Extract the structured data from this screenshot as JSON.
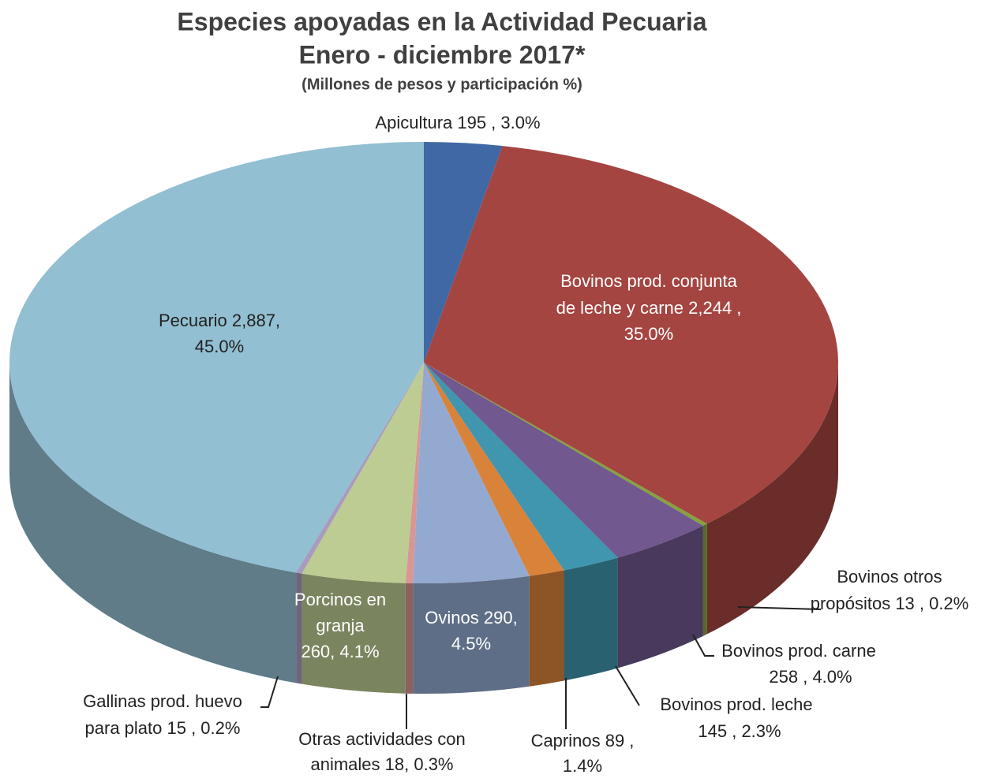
{
  "chart_data": {
    "type": "pie3d",
    "title": [
      "Especies apoyadas en la Actividad Pecuaria",
      "Enero - diciembre 2017*"
    ],
    "subtitle": "(Millones de pesos y participación %)",
    "values": [
      195,
      2244,
      13,
      258,
      145,
      89,
      290,
      18,
      260,
      15,
      2887
    ],
    "value_labels": [
      [
        "Apicultura 195 , 3.0%"
      ],
      [
        "Bovinos prod. conjunta",
        "de leche y carne  2,244 ,",
        "35.0%"
      ],
      [
        "Bovinos otros",
        "propósitos  13 , 0.2%"
      ],
      [
        "Bovinos prod. carne",
        "258 , 4.0%"
      ],
      [
        "Bovinos prod. leche",
        "145 , 2.3%"
      ],
      [
        "Caprinos  89 ,",
        "1.4%"
      ],
      [
        "Ovinos 290,",
        "4.5%"
      ],
      [
        "Otras actividades con",
        "animales 18, 0.3%"
      ],
      [
        "Porcinos en",
        "granja",
        "260, 4.1%"
      ],
      [
        "Gallinas prod. huevo",
        "para plato 15 , 0.2%"
      ],
      [
        "Pecuario 2,887,",
        "45.0%"
      ]
    ],
    "colors": [
      "#4068a4",
      "#a54541",
      "#86a13e",
      "#71588f",
      "#4096ae",
      "#d9823a",
      "#93a9d0",
      "#d99694",
      "#bccc92",
      "#a99bbd",
      "#92bfd1"
    ]
  }
}
